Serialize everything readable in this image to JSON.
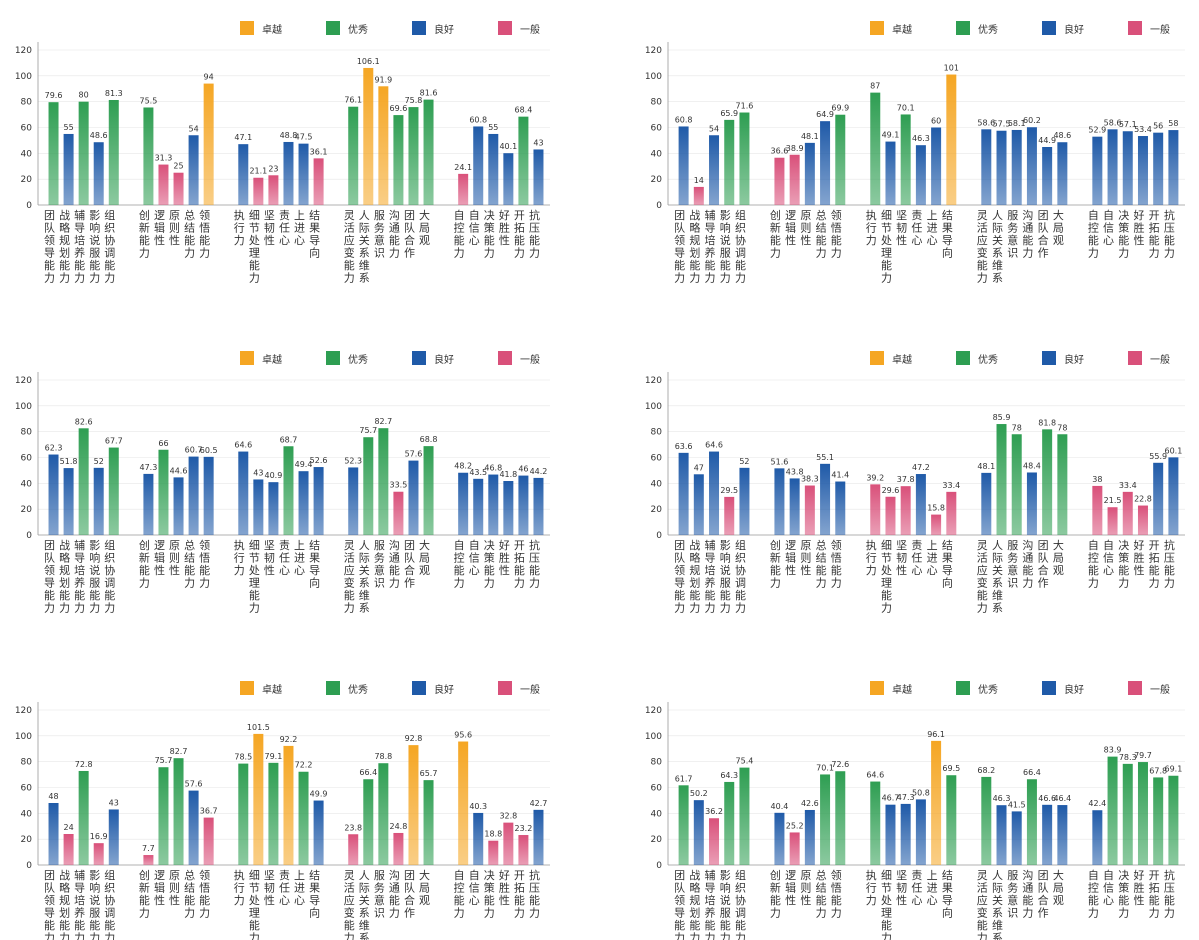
{
  "legend": [
    {
      "label": "卓越",
      "color": "#f5a623"
    },
    {
      "label": "优秀",
      "color": "#2e9e52"
    },
    {
      "label": "良好",
      "color": "#1f5aa8"
    },
    {
      "label": "一般",
      "color": "#d9507a"
    }
  ],
  "colors": {
    "卓越": "#f5a623",
    "优秀": "#2e9e52",
    "良好": "#1f5aa8",
    "一般": "#d9507a",
    "axis": "#999999",
    "grid": "#e6e6e6",
    "text": "#333333"
  },
  "categories": [
    "团队领导能力",
    "战略规划能力",
    "辅导培养能力",
    "影响说服能力",
    "组织协调能力",
    "创新能力",
    "逻辑性",
    "原则性",
    "总结能力",
    "领悟能力",
    "执行力",
    "细节处理能力",
    "坚韧性",
    "责任心",
    "上进心",
    "结果导向",
    "灵活应变能力",
    "人际关系维系",
    "服务意识",
    "沟通能力",
    "团队合作",
    "大局观",
    "自控能力",
    "自信心",
    "决策能力",
    "好胜性",
    "开拓能力",
    "抗压能力"
  ],
  "groups": [
    5,
    5,
    6,
    6,
    6
  ],
  "chart_data": [
    {
      "type": "bar",
      "ylim": [
        0,
        120
      ],
      "yticks": [
        0,
        20,
        40,
        60,
        80,
        100,
        120
      ],
      "values": [
        79.6,
        55,
        80,
        48.6,
        81.3,
        75.5,
        31.3,
        25,
        54,
        94,
        47.1,
        21.1,
        23,
        48.8,
        47.5,
        36.1,
        76.1,
        106.1,
        91.9,
        69.6,
        75.8,
        81.6,
        24.1,
        60.8,
        55,
        40.1,
        68.4,
        43
      ],
      "levels": [
        "优秀",
        "良好",
        "优秀",
        "良好",
        "优秀",
        "优秀",
        "一般",
        "一般",
        "良好",
        "卓越",
        "良好",
        "一般",
        "一般",
        "良好",
        "良好",
        "一般",
        "优秀",
        "卓越",
        "卓越",
        "优秀",
        "优秀",
        "优秀",
        "一般",
        "良好",
        "良好",
        "良好",
        "优秀",
        "良好"
      ]
    },
    {
      "type": "bar",
      "ylim": [
        0,
        120
      ],
      "yticks": [
        0,
        20,
        40,
        60,
        80,
        100,
        120
      ],
      "values": [
        60.8,
        14,
        54,
        65.9,
        71.6,
        36.6,
        38.9,
        48.1,
        64.9,
        69.9,
        87,
        49.1,
        70.1,
        46.3,
        60,
        101,
        58.6,
        57.5,
        58.1,
        60.2,
        44.9,
        48.6,
        52.9,
        58.6,
        57.1,
        53.4,
        56,
        58
      ],
      "levels": [
        "良好",
        "一般",
        "良好",
        "优秀",
        "优秀",
        "一般",
        "一般",
        "良好",
        "良好",
        "优秀",
        "优秀",
        "良好",
        "优秀",
        "良好",
        "良好",
        "卓越",
        "良好",
        "良好",
        "良好",
        "良好",
        "良好",
        "良好",
        "良好",
        "良好",
        "良好",
        "良好",
        "良好",
        "良好"
      ]
    },
    {
      "type": "bar",
      "ylim": [
        0,
        120
      ],
      "yticks": [
        0,
        20,
        40,
        60,
        80,
        100,
        120
      ],
      "values": [
        62.3,
        51.8,
        82.6,
        52,
        67.7,
        47.3,
        66,
        44.6,
        60.7,
        60.5,
        64.6,
        43,
        40.9,
        68.7,
        49.4,
        52.6,
        52.3,
        75.7,
        82.7,
        33.5,
        57.6,
        68.8,
        48.2,
        43.5,
        46.8,
        41.8,
        46,
        44.2
      ],
      "levels": [
        "良好",
        "良好",
        "优秀",
        "良好",
        "优秀",
        "良好",
        "优秀",
        "良好",
        "良好",
        "良好",
        "良好",
        "良好",
        "良好",
        "优秀",
        "良好",
        "良好",
        "良好",
        "优秀",
        "优秀",
        "一般",
        "良好",
        "优秀",
        "良好",
        "良好",
        "良好",
        "良好",
        "良好",
        "良好"
      ]
    },
    {
      "type": "bar",
      "ylim": [
        0,
        120
      ],
      "yticks": [
        0,
        20,
        40,
        60,
        80,
        100,
        120
      ],
      "values": [
        63.6,
        47,
        64.6,
        29.5,
        52,
        51.6,
        43.8,
        38.3,
        55.1,
        41.4,
        39.2,
        29.6,
        37.8,
        47.2,
        15.8,
        33.4,
        48.1,
        85.9,
        78,
        48.4,
        81.8,
        78,
        38,
        21.5,
        33.4,
        22.8,
        55.9,
        60.1
      ],
      "levels": [
        "良好",
        "良好",
        "良好",
        "一般",
        "良好",
        "良好",
        "良好",
        "一般",
        "良好",
        "良好",
        "一般",
        "一般",
        "一般",
        "良好",
        "一般",
        "一般",
        "良好",
        "优秀",
        "优秀",
        "良好",
        "优秀",
        "优秀",
        "一般",
        "一般",
        "一般",
        "一般",
        "良好",
        "良好"
      ]
    },
    {
      "type": "bar",
      "ylim": [
        0,
        120
      ],
      "yticks": [
        0,
        20,
        40,
        60,
        80,
        100,
        120
      ],
      "values": [
        48,
        24,
        72.8,
        16.9,
        43,
        7.7,
        75.7,
        82.7,
        57.6,
        36.7,
        78.5,
        101.5,
        79.1,
        92.2,
        72.2,
        49.9,
        23.8,
        66.4,
        78.8,
        24.8,
        92.8,
        65.7,
        95.6,
        40.3,
        18.8,
        32.8,
        23.2,
        42.7
      ],
      "levels": [
        "良好",
        "一般",
        "优秀",
        "一般",
        "良好",
        "一般",
        "优秀",
        "优秀",
        "良好",
        "一般",
        "优秀",
        "卓越",
        "优秀",
        "卓越",
        "优秀",
        "良好",
        "一般",
        "优秀",
        "优秀",
        "一般",
        "卓越",
        "优秀",
        "卓越",
        "良好",
        "一般",
        "一般",
        "一般",
        "良好"
      ]
    },
    {
      "type": "bar",
      "ylim": [
        0,
        120
      ],
      "yticks": [
        0,
        20,
        40,
        60,
        80,
        100,
        120
      ],
      "values": [
        61.7,
        50.2,
        36.2,
        64.3,
        75.4,
        40.4,
        25.2,
        42.6,
        70.1,
        72.6,
        64.6,
        46.7,
        47.3,
        50.8,
        96.1,
        69.5,
        68.2,
        46.3,
        41.5,
        66.4,
        46.6,
        46.4,
        42.4,
        83.9,
        78.3,
        79.7,
        67.8,
        69.1
      ],
      "levels": [
        "优秀",
        "良好",
        "一般",
        "优秀",
        "优秀",
        "良好",
        "一般",
        "良好",
        "优秀",
        "优秀",
        "优秀",
        "良好",
        "良好",
        "良好",
        "卓越",
        "优秀",
        "优秀",
        "良好",
        "良好",
        "优秀",
        "良好",
        "良好",
        "良好",
        "优秀",
        "优秀",
        "优秀",
        "优秀",
        "优秀"
      ]
    }
  ]
}
